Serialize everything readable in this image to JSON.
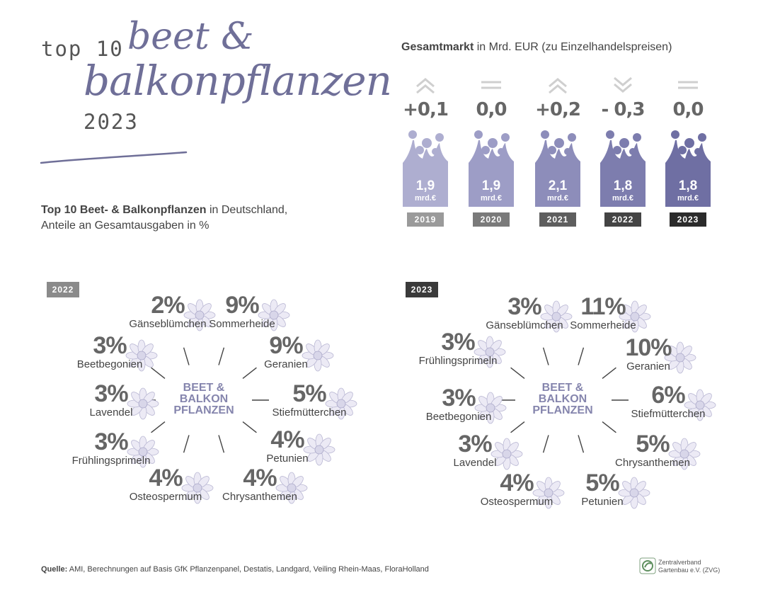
{
  "header": {
    "top10": "top 10",
    "script_line1": "beet &",
    "script_line2": "balkonpflanzen",
    "year": "2023"
  },
  "subtitle": {
    "bold": "Top 10 Beet- & Balkonpflanzen",
    "rest": " in Deutschland,",
    "line2": "Anteile an Gesamtausgaben in %"
  },
  "market": {
    "title_bold": "Gesamtmarkt",
    "title_rest": " in Mrd. EUR (zu Einzelhandelspreisen)",
    "unit": "mrd.€",
    "bar_colors": [
      "#aeaed0",
      "#9d9dc6",
      "#8d8dba",
      "#7d7dae",
      "#6f6fa3"
    ],
    "year_colors": [
      "#9a9a9a",
      "#7a7a7a",
      "#5e5e5e",
      "#444444",
      "#2b2b2b"
    ]
  },
  "chart_data": [
    {
      "type": "bar",
      "title": "Gesamtmarkt in Mrd. EUR (zu Einzelhandelspreisen)",
      "categories": [
        "2019",
        "2020",
        "2021",
        "2022",
        "2023"
      ],
      "values": [
        1.9,
        1.9,
        2.1,
        1.8,
        1.8
      ],
      "value_labels": [
        "1,9",
        "1,9",
        "2,1",
        "1,8",
        "1,8"
      ],
      "changes": [
        "+0,1",
        "0,0",
        "+0,2",
        "- 0,3",
        "0,0"
      ],
      "change_icons": [
        "up-chevrons-icon",
        "equal-icon",
        "up-chevrons-icon",
        "down-chevrons-icon",
        "equal-icon"
      ]
    },
    {
      "type": "pie",
      "title": "2022",
      "center": [
        "BEET &",
        "BALKON",
        "PFLANZEN"
      ],
      "labels": [
        "Gänseblümchen",
        "Sommerheide",
        "Geranien",
        "Stiefmütterchen",
        "Petunien",
        "Chrysanthemen",
        "Osteospermum",
        "Frühlingsprimeln",
        "Lavendel",
        "Beetbegonien"
      ],
      "values": [
        2,
        9,
        9,
        5,
        4,
        4,
        4,
        3,
        3,
        3
      ],
      "value_labels": [
        "2%",
        "9%",
        "9%",
        "5%",
        "4%",
        "4%",
        "4%",
        "3%",
        "3%",
        "3%"
      ]
    },
    {
      "type": "pie",
      "title": "2023",
      "center": [
        "BEET &",
        "BALKON",
        "PFLANZEN"
      ],
      "labels": [
        "Gänseblümchen",
        "Sommerheide",
        "Geranien",
        "Stiefmütterchen",
        "Chrysanthemen",
        "Petunien",
        "Osteospermum",
        "Lavendel",
        "Beetbegonien",
        "Frühlingsprimeln"
      ],
      "values": [
        3,
        11,
        10,
        6,
        5,
        5,
        4,
        3,
        3,
        3
      ],
      "value_labels": [
        "3%",
        "11%",
        "10%",
        "6%",
        "5%",
        "5%",
        "4%",
        "3%",
        "3%",
        "3%"
      ]
    }
  ],
  "donut_tags": [
    "2022",
    "2023"
  ],
  "tag_colors": [
    "#8a8a8a",
    "#3a3a3a"
  ],
  "footer": {
    "source_bold": "Quelle:",
    "source_rest": " AMI, Berechnungen auf Basis GfK Pflanzenpanel, Destatis, Landgard, Veiling Rhein-Maas, FloraHolland",
    "logo_line1": "Zentralverband",
    "logo_line2": "Gartenbau e.V. (ZVG)"
  }
}
